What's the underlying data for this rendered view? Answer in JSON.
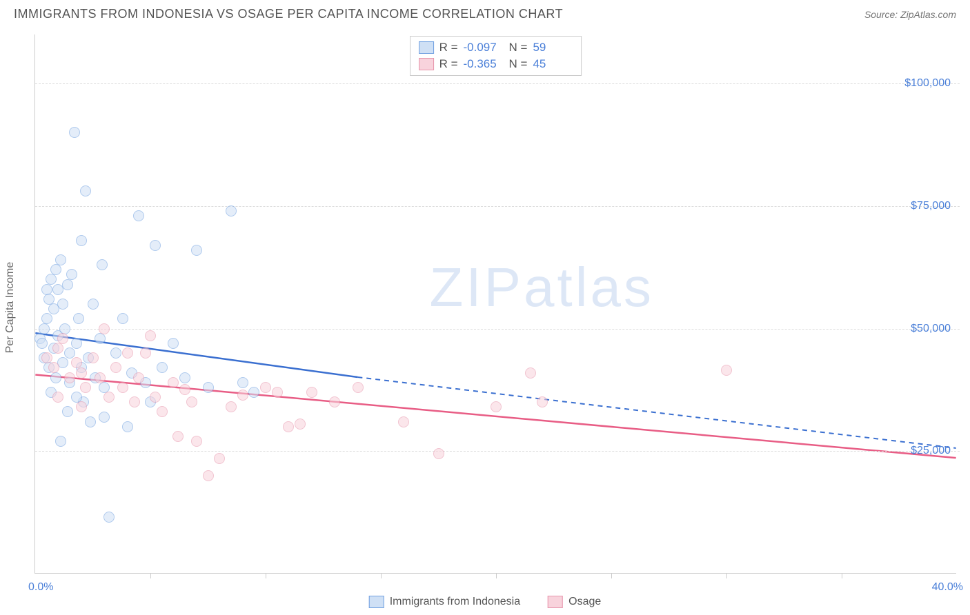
{
  "title": "IMMIGRANTS FROM INDONESIA VS OSAGE PER CAPITA INCOME CORRELATION CHART",
  "source_label": "Source: ZipAtlas.com",
  "watermark": "ZIPatlas",
  "chart": {
    "type": "scatter-with-regression",
    "xlabel": "",
    "ylabel": "Per Capita Income",
    "xlim": [
      0,
      40
    ],
    "ylim": [
      0,
      110000
    ],
    "x_min_label": "0.0%",
    "x_max_label": "40.0%",
    "x_tick_step": 5,
    "y_ticks": [
      25000,
      50000,
      75000,
      100000
    ],
    "y_tick_labels": [
      "$25,000",
      "$50,000",
      "$75,000",
      "$100,000"
    ],
    "grid_color": "#dddddd",
    "axis_color": "#cccccc",
    "background_color": "#ffffff",
    "label_color": "#4a7fd8",
    "text_color": "#666666",
    "title_color": "#555555",
    "title_fontsize": 18,
    "label_fontsize": 16,
    "marker_radius": 8,
    "marker_stroke_width": 1.5,
    "line_width": 2.5
  },
  "series": [
    {
      "id": "indonesia",
      "label": "Immigrants from Indonesia",
      "fill": "#cfe0f5",
      "stroke": "#6f9fe0",
      "line_color": "#3a6fd0",
      "fill_opacity": 0.55,
      "r_value": "-0.097",
      "n_value": "59",
      "regression": {
        "x1": 0,
        "y1": 49000,
        "x2_solid": 14,
        "y2_solid": 40000,
        "x2": 40,
        "y2": 25500,
        "dashed_after_solid": true
      },
      "points": [
        [
          0.2,
          48000
        ],
        [
          0.3,
          47000
        ],
        [
          0.4,
          50000
        ],
        [
          0.4,
          44000
        ],
        [
          0.5,
          58000
        ],
        [
          0.5,
          52000
        ],
        [
          0.6,
          56000
        ],
        [
          0.6,
          42000
        ],
        [
          0.7,
          60000
        ],
        [
          0.8,
          54000
        ],
        [
          0.8,
          46000
        ],
        [
          0.9,
          62000
        ],
        [
          0.9,
          40000
        ],
        [
          1.0,
          58000
        ],
        [
          1.0,
          48500
        ],
        [
          1.1,
          64000
        ],
        [
          1.2,
          55000
        ],
        [
          1.2,
          43000
        ],
        [
          1.3,
          50000
        ],
        [
          1.4,
          59000
        ],
        [
          1.5,
          45000
        ],
        [
          1.5,
          39000
        ],
        [
          1.6,
          61000
        ],
        [
          1.7,
          90000
        ],
        [
          1.8,
          47000
        ],
        [
          1.9,
          52000
        ],
        [
          2.0,
          68000
        ],
        [
          2.0,
          42000
        ],
        [
          2.1,
          35000
        ],
        [
          2.2,
          78000
        ],
        [
          2.3,
          44000
        ],
        [
          2.5,
          55000
        ],
        [
          2.6,
          40000
        ],
        [
          2.8,
          48000
        ],
        [
          2.9,
          63000
        ],
        [
          3.0,
          38000
        ],
        [
          3.0,
          32000
        ],
        [
          3.2,
          11500
        ],
        [
          3.5,
          45000
        ],
        [
          3.8,
          52000
        ],
        [
          4.0,
          30000
        ],
        [
          4.2,
          41000
        ],
        [
          4.5,
          73000
        ],
        [
          4.8,
          39000
        ],
        [
          5.0,
          35000
        ],
        [
          5.2,
          67000
        ],
        [
          5.5,
          42000
        ],
        [
          6.0,
          47000
        ],
        [
          6.5,
          40000
        ],
        [
          7.0,
          66000
        ],
        [
          7.5,
          38000
        ],
        [
          8.5,
          74000
        ],
        [
          9.0,
          39000
        ],
        [
          9.5,
          37000
        ],
        [
          1.1,
          27000
        ],
        [
          1.4,
          33000
        ],
        [
          1.8,
          36000
        ],
        [
          0.7,
          37000
        ],
        [
          2.4,
          31000
        ]
      ]
    },
    {
      "id": "osage",
      "label": "Osage",
      "fill": "#f8d3dc",
      "stroke": "#e794ab",
      "line_color": "#e85d85",
      "fill_opacity": 0.55,
      "r_value": "-0.365",
      "n_value": "45",
      "regression": {
        "x1": 0,
        "y1": 40500,
        "x2_solid": 40,
        "y2_solid": 23500,
        "x2": 40,
        "y2": 23500,
        "dashed_after_solid": false
      },
      "points": [
        [
          0.5,
          44000
        ],
        [
          0.8,
          42000
        ],
        [
          1.0,
          46000
        ],
        [
          1.2,
          48000
        ],
        [
          1.5,
          40000
        ],
        [
          1.8,
          43000
        ],
        [
          2.0,
          41000
        ],
        [
          2.2,
          38000
        ],
        [
          2.5,
          44000
        ],
        [
          2.8,
          40000
        ],
        [
          3.0,
          50000
        ],
        [
          3.2,
          36000
        ],
        [
          3.5,
          42000
        ],
        [
          3.8,
          38000
        ],
        [
          4.0,
          45000
        ],
        [
          4.3,
          35000
        ],
        [
          4.5,
          40000
        ],
        [
          4.8,
          45000
        ],
        [
          5.0,
          48500
        ],
        [
          5.2,
          36000
        ],
        [
          5.5,
          33000
        ],
        [
          6.0,
          39000
        ],
        [
          6.2,
          28000
        ],
        [
          6.5,
          37500
        ],
        [
          6.8,
          35000
        ],
        [
          7.0,
          27000
        ],
        [
          7.5,
          20000
        ],
        [
          8.0,
          23500
        ],
        [
          8.5,
          34000
        ],
        [
          9.0,
          36500
        ],
        [
          10.0,
          38000
        ],
        [
          10.5,
          37000
        ],
        [
          11.0,
          30000
        ],
        [
          11.5,
          30500
        ],
        [
          12.0,
          37000
        ],
        [
          13.0,
          35000
        ],
        [
          14.0,
          38000
        ],
        [
          16.0,
          31000
        ],
        [
          17.5,
          24500
        ],
        [
          20.0,
          34000
        ],
        [
          21.5,
          41000
        ],
        [
          22.0,
          35000
        ],
        [
          30.0,
          41500
        ],
        [
          1.0,
          36000
        ],
        [
          2.0,
          34000
        ]
      ]
    }
  ],
  "legend_stats": {
    "r_label": "R =",
    "n_label": "N ="
  }
}
